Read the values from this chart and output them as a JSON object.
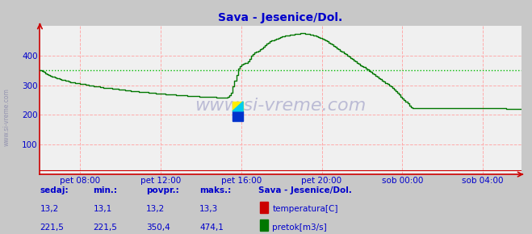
{
  "title": "Sava - Jesenice/Dol.",
  "bg_color": "#c8c8c8",
  "plot_bg_color": "#f0f0f0",
  "grid_color": "#ffaaaa",
  "avg_line_color": "#00bb00",
  "avg_line_value": 350.4,
  "flow_color": "#007700",
  "temp_color": "#cc0000",
  "axis_color": "#cc0000",
  "title_color": "#0000cc",
  "label_color": "#0000cc",
  "tick_color": "#0000cc",
  "watermark": "www.si-vreme.com",
  "ylim": [
    0,
    500
  ],
  "yticks": [
    100,
    200,
    300,
    400
  ],
  "xlim_max": 287,
  "xtick_positions": [
    24,
    72,
    120,
    168,
    216,
    264
  ],
  "xtick_labels": [
    "pet 08:00",
    "pet 12:00",
    "pet 16:00",
    "pet 20:00",
    "sob 00:00",
    "sob 04:00"
  ],
  "sedaj_label": "sedaj:",
  "min_label": "min.:",
  "povpr_label": "povpr.:",
  "maks_label": "maks.:",
  "station_label": "Sava - Jesenice/Dol.",
  "temp_label": "temperatura[C]",
  "flow_label": "pretok[m3/s]",
  "temp_sedaj": "13,2",
  "temp_min": "13,1",
  "temp_povpr": "13,2",
  "temp_maks": "13,3",
  "flow_sedaj": "221,5",
  "flow_min": "221,5",
  "flow_povpr": "350,4",
  "flow_maks": "474,1",
  "flow_data": [
    350,
    348,
    344,
    340,
    337,
    334,
    332,
    330,
    328,
    326,
    324,
    322,
    320,
    318,
    317,
    315,
    314,
    312,
    311,
    310,
    309,
    308,
    307,
    306,
    305,
    304,
    303,
    302,
    301,
    300,
    299,
    298,
    297,
    296,
    296,
    295,
    294,
    293,
    292,
    292,
    291,
    290,
    290,
    289,
    288,
    288,
    287,
    286,
    285,
    285,
    284,
    283,
    283,
    282,
    281,
    281,
    280,
    280,
    279,
    278,
    278,
    277,
    277,
    276,
    276,
    275,
    275,
    274,
    274,
    273,
    273,
    272,
    272,
    271,
    271,
    270,
    270,
    269,
    269,
    268,
    268,
    267,
    267,
    267,
    266,
    266,
    265,
    265,
    264,
    264,
    263,
    263,
    263,
    263,
    263,
    262,
    262,
    262,
    262,
    261,
    261,
    261,
    260,
    260,
    260,
    259,
    259,
    259,
    259,
    259,
    259,
    259,
    260,
    265,
    275,
    295,
    315,
    335,
    355,
    365,
    370,
    372,
    374,
    376,
    380,
    388,
    398,
    405,
    410,
    413,
    416,
    420,
    425,
    430,
    435,
    440,
    444,
    447,
    450,
    452,
    454,
    457,
    460,
    462,
    464,
    465,
    466,
    467,
    468,
    469,
    470,
    471,
    472,
    473,
    473,
    474,
    474,
    474,
    473,
    473,
    472,
    471,
    470,
    468,
    466,
    464,
    462,
    459,
    456,
    453,
    450,
    447,
    444,
    440,
    436,
    432,
    428,
    424,
    420,
    416,
    412,
    408,
    404,
    400,
    396,
    392,
    388,
    384,
    380,
    376,
    372,
    368,
    364,
    360,
    356,
    352,
    348,
    344,
    340,
    336,
    332,
    328,
    324,
    320,
    316,
    312,
    308,
    304,
    300,
    295,
    290,
    285,
    280,
    274,
    268,
    262,
    256,
    250,
    244,
    238,
    232,
    226,
    222,
    222,
    222,
    222,
    222,
    222,
    222,
    222,
    222,
    222,
    222,
    222,
    222,
    222,
    222,
    222,
    222,
    222,
    222,
    222,
    222,
    222,
    222,
    222,
    222,
    222,
    222,
    222,
    222,
    222,
    222,
    222,
    222,
    222,
    222,
    222,
    222,
    222,
    222,
    222,
    222,
    222,
    222,
    222,
    222,
    222,
    222,
    222,
    222,
    222,
    222,
    222,
    222,
    222,
    222,
    222,
    221,
    221,
    221,
    221,
    221,
    221,
    221,
    221,
    221,
    221
  ]
}
